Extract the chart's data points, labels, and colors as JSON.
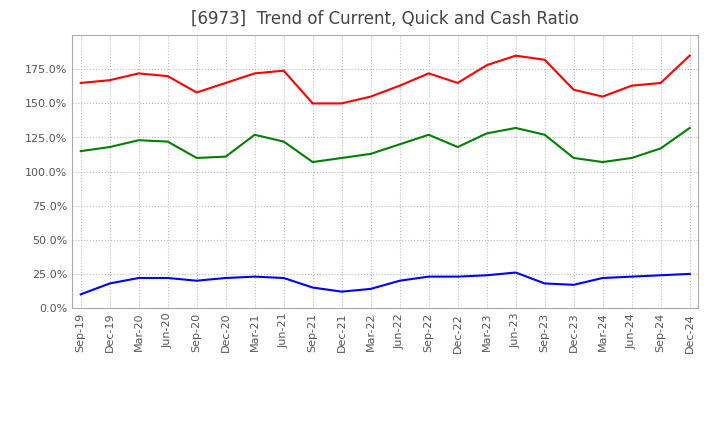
{
  "title": "[6973]  Trend of Current, Quick and Cash Ratio",
  "x_labels": [
    "Sep-19",
    "Dec-19",
    "Mar-20",
    "Jun-20",
    "Sep-20",
    "Dec-20",
    "Mar-21",
    "Jun-21",
    "Sep-21",
    "Dec-21",
    "Mar-22",
    "Jun-22",
    "Sep-22",
    "Dec-22",
    "Mar-23",
    "Jun-23",
    "Sep-23",
    "Dec-23",
    "Mar-24",
    "Jun-24",
    "Sep-24",
    "Dec-24"
  ],
  "current_ratio": [
    165,
    167,
    172,
    170,
    158,
    165,
    172,
    174,
    150,
    150,
    155,
    163,
    172,
    165,
    178,
    185,
    182,
    160,
    155,
    163,
    165,
    185
  ],
  "quick_ratio": [
    115,
    118,
    123,
    122,
    110,
    111,
    127,
    122,
    107,
    110,
    113,
    120,
    127,
    118,
    128,
    132,
    127,
    110,
    107,
    110,
    117,
    132
  ],
  "cash_ratio": [
    10,
    18,
    22,
    22,
    20,
    22,
    23,
    22,
    15,
    12,
    14,
    20,
    23,
    23,
    24,
    26,
    18,
    17,
    22,
    23,
    24,
    25
  ],
  "current_color": "#ff0000",
  "quick_color": "#008000",
  "cash_color": "#0000ff",
  "ylim": [
    0,
    200
  ],
  "yticks": [
    0,
    25,
    50,
    75,
    100,
    125,
    150,
    175
  ],
  "background_color": "#ffffff",
  "grid_color": "#bbbbbb",
  "title_fontsize": 12,
  "tick_fontsize": 8
}
